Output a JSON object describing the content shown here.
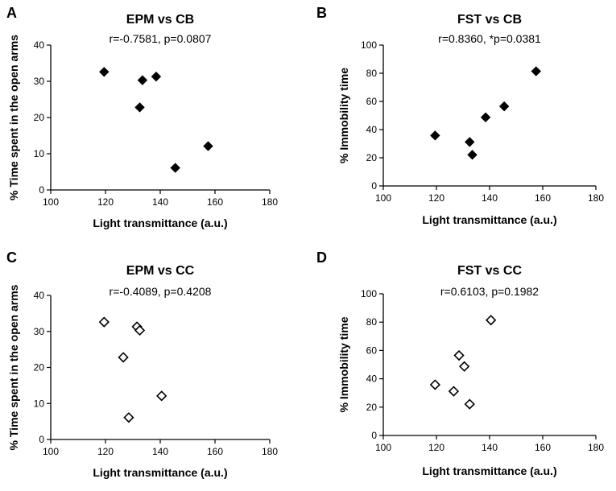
{
  "chart_data": [
    {
      "type": "scatter",
      "panel": "A",
      "title": "EPM vs CB",
      "subtitle": "r=-0.7581, p=0.0807",
      "xlabel": "Light transmittance (a.u.)",
      "ylabel": "% Time spent in the open arms",
      "xlim": [
        100,
        180
      ],
      "ylim": [
        0,
        40
      ],
      "xticks": [
        "100",
        "120",
        "140",
        "160",
        "180"
      ],
      "yticks": [
        "0",
        "10",
        "20",
        "30",
        "40"
      ],
      "marker": "filled-diamond",
      "x": [
        119.5,
        132.5,
        133.5,
        138.5,
        145.5,
        157.5
      ],
      "y": [
        32.6,
        22.8,
        30.3,
        31.3,
        6.1,
        12.1
      ]
    },
    {
      "type": "scatter",
      "panel": "B",
      "title": "FST vs CB",
      "subtitle": "r=0.8360, *p=0.0381",
      "xlabel": "Light transmittance (a.u.)",
      "ylabel": "% Immobility time",
      "xlim": [
        100,
        180
      ],
      "ylim": [
        0,
        100
      ],
      "xticks": [
        "100",
        "120",
        "140",
        "160",
        "180"
      ],
      "yticks": [
        "0",
        "20",
        "40",
        "60",
        "80",
        "100"
      ],
      "marker": "filled-diamond",
      "x": [
        119.5,
        132.5,
        133.5,
        138.5,
        145.5,
        157.5
      ],
      "y": [
        35.8,
        31.2,
        22.1,
        48.7,
        56.5,
        81.4
      ]
    },
    {
      "type": "scatter",
      "panel": "C",
      "title": "EPM vs CC",
      "subtitle": "r=-0.4089, p=0.4208",
      "xlabel": "Light transmittance (a.u.)",
      "ylabel": "% Time spent in the open arms",
      "xlim": [
        100,
        180
      ],
      "ylim": [
        0,
        40
      ],
      "xticks": [
        "100",
        "120",
        "140",
        "160",
        "180"
      ],
      "yticks": [
        "0",
        "10",
        "20",
        "30",
        "40"
      ],
      "marker": "open-diamond",
      "x": [
        119.5,
        126.5,
        128.5,
        131.5,
        132.5,
        140.5
      ],
      "y": [
        32.6,
        22.8,
        6.1,
        31.3,
        30.3,
        12.1
      ]
    },
    {
      "type": "scatter",
      "panel": "D",
      "title": "FST vs CC",
      "subtitle": "r=0.6103, p=0.1982",
      "xlabel": "Light transmittance (a.u.)",
      "ylabel": "% Immobility time",
      "xlim": [
        100,
        180
      ],
      "ylim": [
        0,
        100
      ],
      "xticks": [
        "100",
        "120",
        "140",
        "160",
        "180"
      ],
      "yticks": [
        "0",
        "20",
        "40",
        "60",
        "80",
        "100"
      ],
      "marker": "open-diamond",
      "x": [
        119.5,
        126.5,
        128.5,
        130.5,
        132.5,
        140.5
      ],
      "y": [
        35.8,
        31.2,
        56.5,
        48.7,
        22.1,
        81.4
      ]
    }
  ]
}
